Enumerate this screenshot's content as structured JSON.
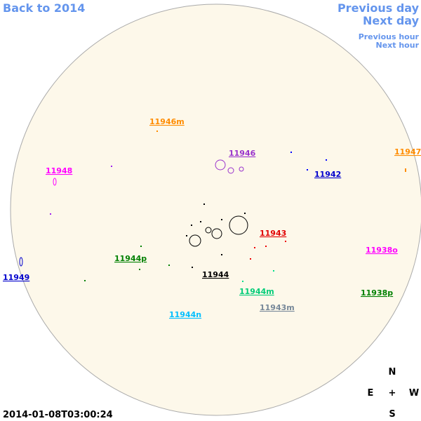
{
  "nav": {
    "back": "Back to 2014",
    "previous_day": "Previous day",
    "next_day": "Next day",
    "previous_hour": "Previous hour",
    "next_hour": "Next hour"
  },
  "regions": [
    {
      "label": "11946m"
    },
    {
      "label": "11946"
    },
    {
      "label": "11947"
    },
    {
      "label": "11948"
    },
    {
      "label": "11942"
    },
    {
      "label": "11943"
    },
    {
      "label": "11938o"
    },
    {
      "label": "11944p"
    },
    {
      "label": "11944"
    },
    {
      "label": "11949"
    },
    {
      "label": "11944m"
    },
    {
      "label": "11938p"
    },
    {
      "label": "11943m"
    },
    {
      "label": "11944n"
    }
  ],
  "compass": {
    "north": "N",
    "east": "E",
    "center": "+",
    "west": "W",
    "south": "S"
  },
  "timestamp": "2014-01-08T03:00:24"
}
